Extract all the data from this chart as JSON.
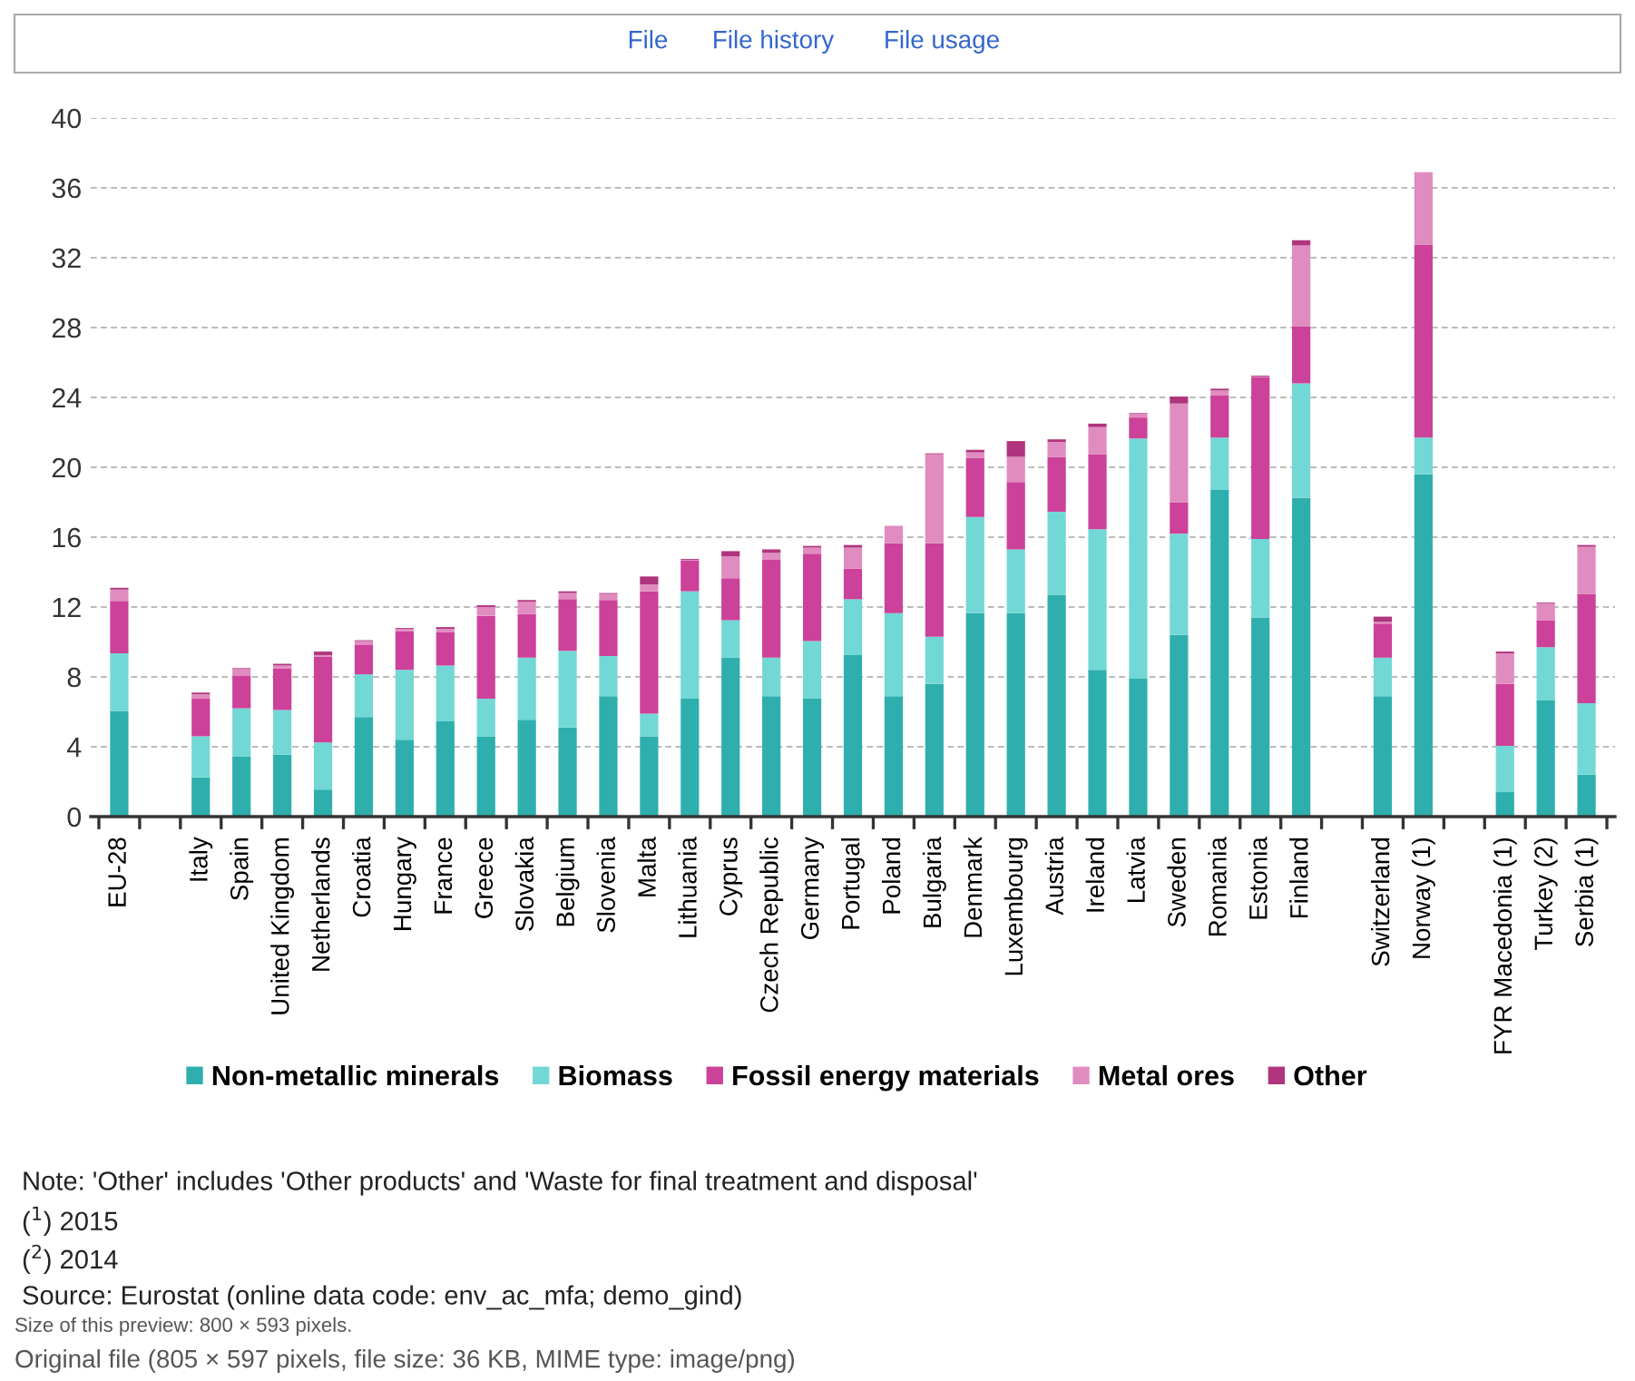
{
  "chart_data": {
    "type": "bar",
    "stacked": true,
    "categories": [
      "EU-28",
      null,
      "Italy",
      "Spain",
      "United Kingdom",
      "Netherlands",
      "Croatia",
      "Hungary",
      "France",
      "Greece",
      "Slovakia",
      "Belgium",
      "Slovenia",
      "Malta",
      "Lithuania",
      "Cyprus",
      "Czech Republic",
      "Germany",
      "Portugal",
      "Poland",
      "Bulgaria",
      "Denmark",
      "Luxembourg",
      "Austria",
      "Ireland",
      "Latvia",
      "Sweden",
      "Romania",
      "Estonia",
      "Finland",
      null,
      "Switzerland",
      "Norway (1)",
      null,
      "FYR Macedonia (1)",
      "Turkey (2)",
      "Serbia (1)"
    ],
    "series": [
      {
        "name": "Non-metallic minerals",
        "color": "#2eafad",
        "values": [
          6.05,
          null,
          2.25,
          3.45,
          3.55,
          1.55,
          5.7,
          4.4,
          5.45,
          4.6,
          5.55,
          5.1,
          6.9,
          4.6,
          6.75,
          9.1,
          6.9,
          6.75,
          9.25,
          6.9,
          7.6,
          11.65,
          11.65,
          12.7,
          8.4,
          7.9,
          10.4,
          18.7,
          11.4,
          18.25,
          null,
          6.9,
          19.6,
          null,
          1.4,
          6.65,
          2.4
        ]
      },
      {
        "name": "Biomass",
        "color": "#72d8d6",
        "values": [
          3.3,
          null,
          2.35,
          2.75,
          2.55,
          2.7,
          2.45,
          4.0,
          3.2,
          2.15,
          3.55,
          4.4,
          2.3,
          1.3,
          6.15,
          2.15,
          2.2,
          3.3,
          3.2,
          4.75,
          2.7,
          5.5,
          3.65,
          4.75,
          8.05,
          13.75,
          5.8,
          3.0,
          4.5,
          6.55,
          null,
          2.2,
          2.1,
          null,
          2.65,
          3.05,
          4.1
        ]
      },
      {
        "name": "Fossil energy materials",
        "color": "#cc4199",
        "values": [
          3.0,
          null,
          2.15,
          1.85,
          2.4,
          4.9,
          1.7,
          2.2,
          1.9,
          4.75,
          2.5,
          2.95,
          3.2,
          7.0,
          1.75,
          2.4,
          5.6,
          5.0,
          1.75,
          4.0,
          5.35,
          3.4,
          3.85,
          3.15,
          4.3,
          1.2,
          1.8,
          2.4,
          9.25,
          3.25,
          null,
          1.95,
          11.05,
          null,
          3.55,
          1.55,
          6.25
        ]
      },
      {
        "name": "Metal ores",
        "color": "#e08cc0",
        "values": [
          0.65,
          null,
          0.25,
          0.4,
          0.15,
          0.1,
          0.2,
          0.15,
          0.2,
          0.5,
          0.7,
          0.35,
          0.35,
          0.4,
          0.05,
          1.25,
          0.4,
          0.35,
          1.2,
          1.0,
          5.1,
          0.3,
          1.45,
          0.85,
          1.55,
          0.2,
          5.65,
          0.3,
          0.05,
          4.65,
          null,
          0.1,
          4.15,
          null,
          1.75,
          0.95,
          2.7
        ]
      },
      {
        "name": "Other",
        "color": "#b0347e",
        "values": [
          0.1,
          null,
          0.1,
          0.05,
          0.1,
          0.2,
          0.05,
          0.05,
          0.1,
          0.1,
          0.1,
          0.1,
          0.05,
          0.45,
          0.05,
          0.3,
          0.2,
          0.1,
          0.15,
          null,
          0.05,
          0.15,
          0.9,
          0.15,
          0.2,
          0.05,
          0.4,
          0.1,
          0.05,
          0.3,
          null,
          0.3,
          0,
          null,
          0.1,
          0.05,
          0.1
        ]
      }
    ],
    "ylim": [
      0,
      40
    ],
    "yticks": [
      0,
      4,
      8,
      12,
      16,
      20,
      24,
      28,
      32,
      36,
      40
    ],
    "grid": "y",
    "legend": "bottom",
    "annotations": [
      "File",
      "File history",
      "File usage",
      "Note: 'Other' includes 'Other products' and 'Waste for final treatment and disposal'",
      "($^{1}$) 2015",
      "($^{2}$) 2014",
      "Source: Eurostat (online data code: env_ac_mfa; demo_gind)",
      "Size of this preview: 800 × 593 pixels.",
      "Original file (805 × 597 pixels, file size: 36 KB, MIME type: image/png)"
    ]
  }
}
